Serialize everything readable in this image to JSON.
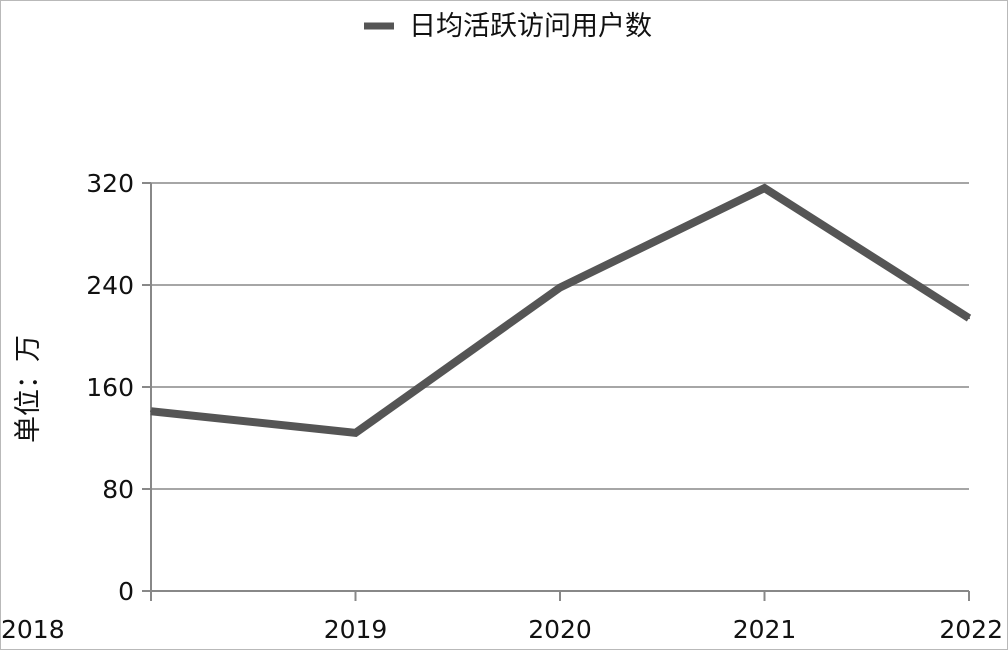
{
  "chart_data": {
    "type": "line",
    "x": [
      "2018",
      "2019",
      "2020",
      "2021",
      "2022"
    ],
    "series": [
      {
        "name": "日均活跃访问用户数",
        "values": [
          141,
          124,
          238,
          316,
          214
        ]
      }
    ],
    "ylabel": "单位：万",
    "ylim": [
      0,
      320
    ],
    "yticks": [
      0,
      80,
      160,
      240,
      320
    ],
    "grid": true,
    "legend": "top-center",
    "colors": {
      "line": "#555555",
      "grid": "#a6a6a6",
      "axis": "#888888"
    }
  }
}
